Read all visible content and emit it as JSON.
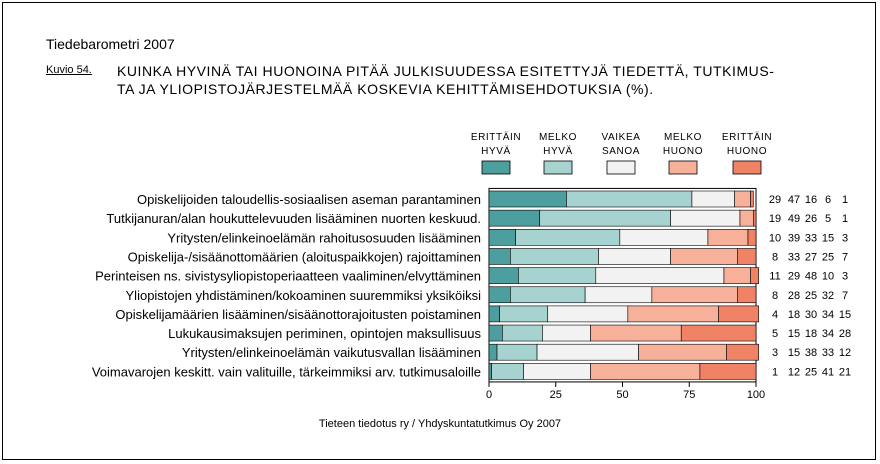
{
  "header": {
    "report_title": "Tiedebarometri 2007",
    "figure_label": "Kuvio 54.",
    "title_line_1": "KUINKA HYVINÄ TAI HUONOINA PITÄÄ JULKISUUDESSA ESITETTYJÄ TIEDETTÄ, TUTKIMUS-",
    "title_line_2": "TA JA YLIOPISTOJÄRJESTELMÄÄ KOSKEVIA KEHITTÄMISEHDOTUKSIA (%)."
  },
  "footer": {
    "source": "Tieteen tiedotus ry / Yhdyskuntatutkimus Oy 2007"
  },
  "chart_data": {
    "type": "bar",
    "orientation": "horizontal",
    "stacked": true,
    "title": "KUINKA HYVINÄ TAI HUONOINA PITÄÄ JULKISUUDESSA ESITETTYJÄ TIEDETTÄ, TUTKIMUSTA JA YLIOPISTOJÄRJESTELMÄÄ KOSKEVIA KEHITTÄMISEHDOTUKSIA (%).",
    "xlabel": "",
    "ylabel": "",
    "xlim": [
      0,
      100
    ],
    "xticks": [
      0,
      25,
      50,
      75,
      100
    ],
    "grid": false,
    "legend_position": "top-right",
    "categories": [
      "Opiskelijoiden taloudellis-sosiaalisen aseman parantaminen",
      "Tutkijanuran/alan houkuttelevuuden lisääminen nuorten keskuud.",
      "Yritysten/elinkeinoelämän rahoitusosuuden lisääminen",
      "Opiskelija-/sisäänottomäärien (aloituspaikkojen) rajoittaminen",
      "Perinteisen ns. sivistysyliopistoperiaatteen vaaliminen/elvyttäminen",
      "Yliopistojen yhdistäminen/kokoaminen suuremmiksi yksiköiksi",
      "Opiskelijamäärien lisääminen/sisäänottorajoitusten poistaminen",
      "Lukukausimaksujen periminen, opintojen maksullisuus",
      "Yritysten/elinkeinoelämän vaikutusvallan lisääminen",
      "Voimavarojen keskitt. vain valituille, tärkeimmiksi arv. tutkimusaloille"
    ],
    "series": [
      {
        "name": "ERITTÄIN HYVÄ",
        "legend_lines": [
          "ERITTÄIN",
          "HYVÄ"
        ],
        "color": "#4d9e9e",
        "values": [
          29,
          19,
          10,
          8,
          11,
          8,
          4,
          5,
          3,
          1
        ]
      },
      {
        "name": "MELKO HYVÄ",
        "legend_lines": [
          "MELKO",
          "HYVÄ"
        ],
        "color": "#a6d2d0",
        "values": [
          47,
          49,
          39,
          33,
          29,
          28,
          18,
          15,
          15,
          12
        ]
      },
      {
        "name": "VAIKEA SANOA",
        "legend_lines": [
          "VAIKEA",
          "SANOA"
        ],
        "color": "#f2f2f2",
        "values": [
          16,
          26,
          33,
          27,
          48,
          25,
          30,
          18,
          38,
          25
        ]
      },
      {
        "name": "MELKO HUONO",
        "legend_lines": [
          "MELKO",
          "HUONO"
        ],
        "color": "#f7b09a",
        "values": [
          6,
          5,
          15,
          25,
          10,
          32,
          34,
          34,
          33,
          41
        ]
      },
      {
        "name": "ERITTÄIN HUONO",
        "legend_lines": [
          "ERITTÄIN",
          "HUONO"
        ],
        "color": "#f08266",
        "values": [
          1,
          1,
          3,
          7,
          3,
          7,
          15,
          28,
          12,
          21
        ]
      }
    ]
  }
}
